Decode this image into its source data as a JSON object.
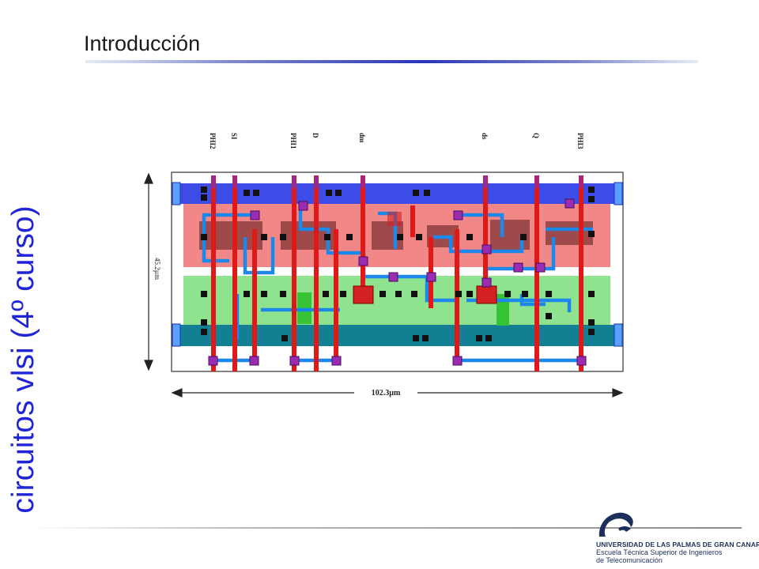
{
  "slide": {
    "title": "Introducción",
    "side_title": "circuitos vlsi (4º curso)"
  },
  "layout": {
    "signals": [
      "PHI2",
      "SI",
      "PHI1",
      "D",
      "dm",
      "ds",
      "Q",
      "PHI3"
    ],
    "height_label": "45.2µm",
    "width_label": "102.3µm"
  },
  "footer": {
    "university": "UNIVERSIDAD DE LAS PALMAS DE GRAN CANARIA",
    "school_line1": "Escuela Técnica Superior de Ingenieros",
    "school_line2": "de Telecomunicación"
  },
  "colors": {
    "title_rule": "#2a35b8",
    "side_title": "#1f24d8",
    "metal1": "#3a48e0",
    "metal1_gnd": "#137f92",
    "pdiff": "#f08080",
    "ndiff": "#80de80",
    "poly": "#e21414",
    "metal2_wire": "#1e88ea",
    "via": "#9b2bb0",
    "contact": "#111111"
  }
}
